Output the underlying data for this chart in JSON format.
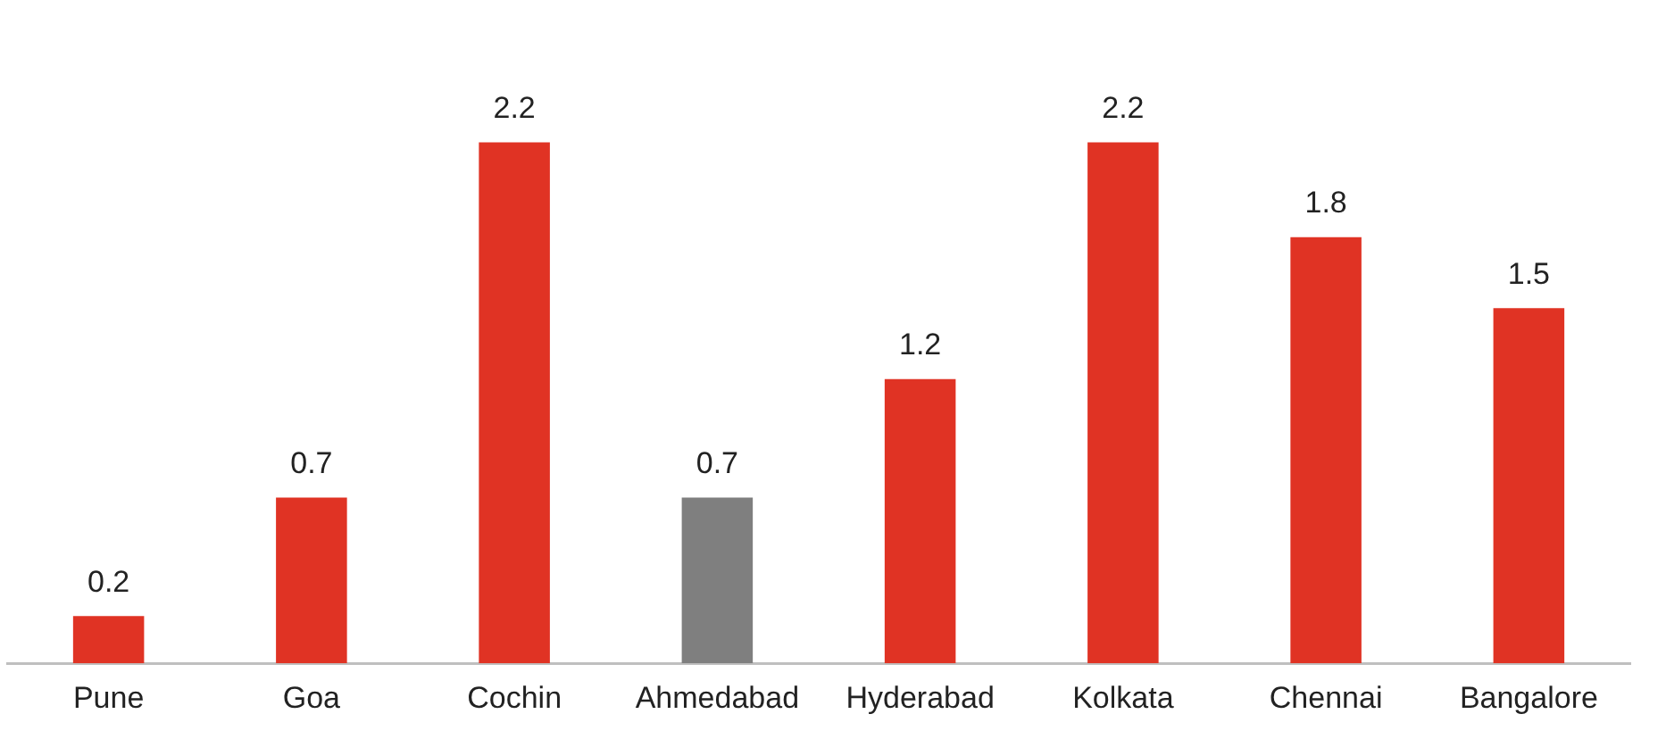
{
  "chart_data": {
    "type": "bar",
    "categories": [
      "Pune",
      "Goa",
      "Cochin",
      "Ahmedabad",
      "Hyderabad",
      "Kolkata",
      "Chennai",
      "Bangalore"
    ],
    "values": [
      0.2,
      0.7,
      2.2,
      0.7,
      1.2,
      2.2,
      1.8,
      1.5
    ],
    "colors": [
      "#e03324",
      "#e03324",
      "#e03324",
      "#7f7f7f",
      "#e03324",
      "#e03324",
      "#e03324",
      "#e03324"
    ],
    "data_labels": true,
    "grid": false,
    "legend": false
  }
}
